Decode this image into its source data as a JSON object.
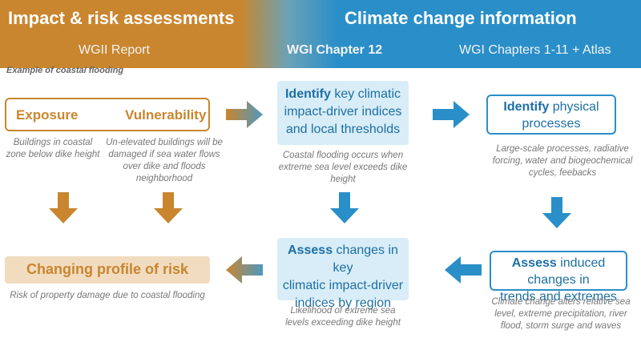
{
  "headers": {
    "left_title": "Impact & risk assessments",
    "right_title": "Climate change information",
    "left_sub": "WGII Report",
    "center_sub": "WGI Chapter 12",
    "right_sub": "WGI Chapters 1-11 + Atlas"
  },
  "example_note": "Example of coastal flooding",
  "exposure_box": {
    "exposure": "Exposure",
    "vulnerability": "Vulnerability"
  },
  "exposure_caption": "Buildings in coastal zone below dike height",
  "vulnerability_caption": "Un-elevated buildings will be damaged if sea water flows over dike and floods neighborhood",
  "identify_indices": {
    "verb": "Identify",
    "rest_line1": " key climatic",
    "line2": "impact-driver indices",
    "line3": "and local thresholds"
  },
  "identify_indices_caption": "Coastal flooding occurs when extreme sea level exceeds dike height",
  "identify_physical": {
    "verb": "Identify",
    "rest_line1": " physical",
    "line2": "processes"
  },
  "identify_physical_caption": "Large-scale processes, radiative forcing, water and biogeochemical cycles, feebacks",
  "risk_box": {
    "label": "Changing profile of risk"
  },
  "risk_caption": "Risk of property damage due to coastal flooding",
  "assess_changes": {
    "verb": "Assess",
    "rest_line1": " changes in key",
    "line2": "climatic impact-driver",
    "line3": "indices by region"
  },
  "assess_changes_caption": "Likelihood of extreme sea levels exceeding dike height",
  "assess_induced": {
    "verb": "Assess",
    "rest_line1": " induced changes in",
    "line2": "trends and extremes"
  },
  "assess_induced_caption": "Climate change alters relative sea level, extreme precipitation, river flood, storm surge and waves",
  "colors": {
    "orange": "#c9862f",
    "blue": "#2a8fc8",
    "text_blue": "#1d6fa5"
  }
}
